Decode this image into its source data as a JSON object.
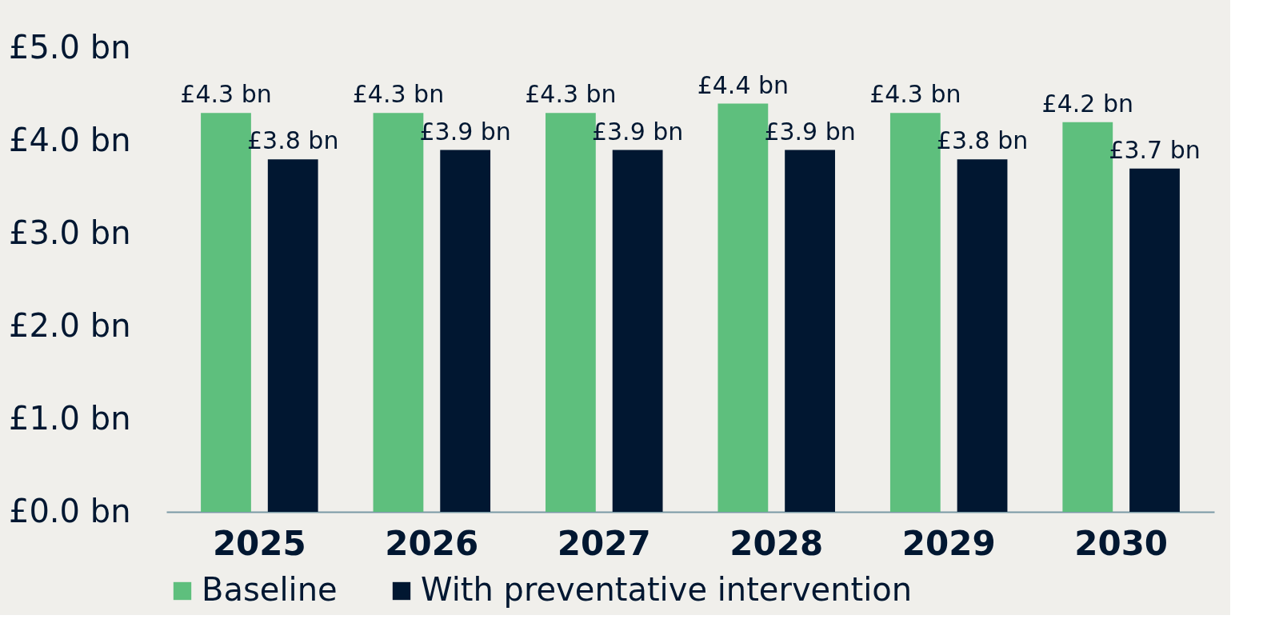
{
  "chart_data": {
    "type": "bar",
    "categories": [
      "2025",
      "2026",
      "2027",
      "2028",
      "2029",
      "2030"
    ],
    "series": [
      {
        "name": "Baseline",
        "color": "#5ebf7d",
        "values": [
          4.3,
          4.3,
          4.3,
          4.4,
          4.3,
          4.2
        ],
        "value_labels": [
          "£4.3 bn",
          "£4.3 bn",
          "£4.3 bn",
          "£4.4 bn",
          "£4.3 bn",
          "£4.2 bn"
        ]
      },
      {
        "name": "With preventative intervention",
        "color": "#011731",
        "values": [
          3.8,
          3.9,
          3.9,
          3.9,
          3.8,
          3.7
        ],
        "value_labels": [
          "£3.8 bn",
          "£3.9 bn",
          "£3.9 bn",
          "£3.9 bn",
          "£3.8 bn",
          "£3.7 bn"
        ]
      }
    ],
    "ylim": [
      0,
      5
    ],
    "yticks": [
      {
        "value": 0,
        "label": "£0.0 bn"
      },
      {
        "value": 1,
        "label": "£1.0 bn"
      },
      {
        "value": 2,
        "label": "£2.0 bn"
      },
      {
        "value": 3,
        "label": "£3.0 bn"
      },
      {
        "value": 4,
        "label": "£4.0 bn"
      },
      {
        "value": 5,
        "label": "£5.0 bn"
      }
    ],
    "grid": false,
    "legend": "bottom"
  }
}
